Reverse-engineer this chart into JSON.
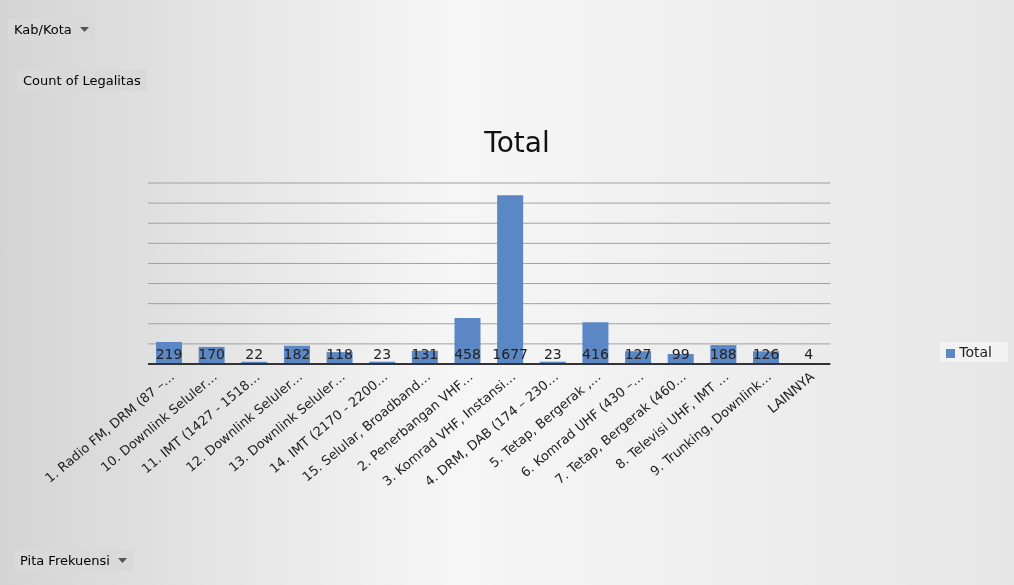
{
  "chart_data": {
    "type": "bar",
    "title": "Total",
    "categories": [
      "1. Radio FM, DRM (87 –…",
      "10. Downlink Seluler…",
      "11. IMT (1427 - 1518…",
      "12. Downlink Seluler…",
      "13. Downlink Seluler…",
      "14. IMT (2170 - 2200…",
      "15. Selular, Broadband…",
      "2. Penerbangan VHF…",
      "3. Komrad VHF, Instansi…",
      "4. DRM, DAB (174 – 230…",
      "5. Tetap, Bergerak ,…",
      "6. Komrad UHF (430 –…",
      "7. Tetap, Bergerak (460…",
      "8. Televisi UHF, IMT …",
      "9. Trunking, Downlink…",
      "LAINNYA"
    ],
    "series": [
      {
        "name": "Total",
        "color": "#5b87c5",
        "values": [
          219,
          170,
          22,
          182,
          118,
          23,
          131,
          458,
          1677,
          23,
          416,
          127,
          99,
          188,
          126,
          4
        ]
      }
    ],
    "grid": "y",
    "legend": "right",
    "tick_labels": "x",
    "data_labels": true,
    "annotations": [
      "Kab/Kota",
      "Count of Legalitas",
      "Pita Frekuensi"
    ]
  }
}
